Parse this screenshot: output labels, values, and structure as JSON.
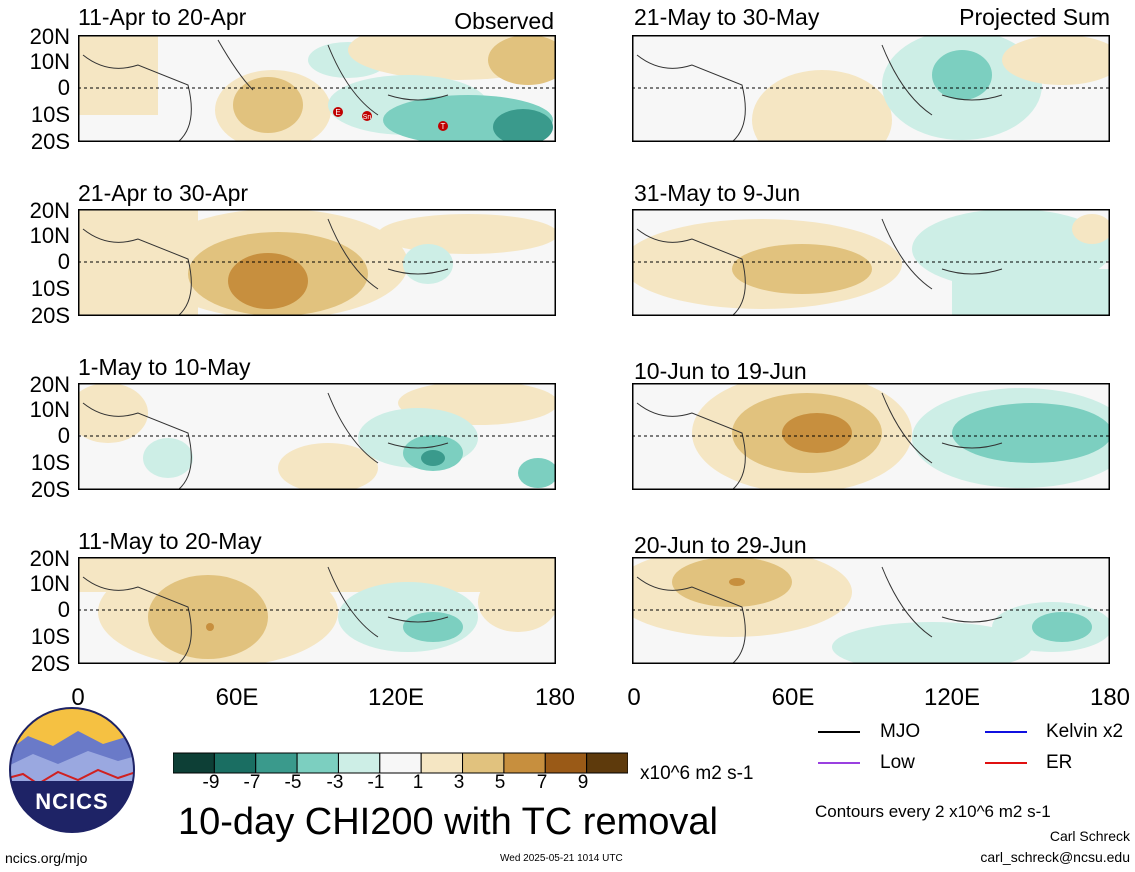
{
  "observed_label": "Observed",
  "projected_label": "Projected Sum",
  "lat_labels": [
    "20N",
    "10N",
    "0",
    "10S",
    "20S"
  ],
  "lon_labels": [
    "0",
    "60E",
    "120E",
    "180"
  ],
  "panels_left": [
    {
      "title": "11-Apr to 20-Apr"
    },
    {
      "title": "21-Apr to 30-Apr"
    },
    {
      "title": "1-May to 10-May"
    },
    {
      "title": "11-May to 20-May"
    }
  ],
  "panels_right": [
    {
      "title": "21-May to 30-May"
    },
    {
      "title": "31-May to 9-Jun"
    },
    {
      "title": "10-Jun to 19-Jun"
    },
    {
      "title": "20-Jun to 29-Jun"
    }
  ],
  "tc_markers": [
    "E",
    "Sn",
    "T"
  ],
  "colorbar": {
    "labels": [
      "-9",
      "-7",
      "-5",
      "-3",
      "-1",
      "1",
      "3",
      "5",
      "7",
      "9"
    ],
    "units": "x10^6 m2 s-1",
    "colors": [
      "#0d3f36",
      "#1a6e62",
      "#3a9a8c",
      "#7ccfc0",
      "#cdeee6",
      "#f7f7f7",
      "#f5e6c3",
      "#e1c27e",
      "#c78f3e",
      "#9a5a17",
      "#5e3a0c"
    ]
  },
  "main_title": "10-day CHI200 with TC removal",
  "logo_text": "NCICS",
  "legend": {
    "mjo": "MJO",
    "kelvin": "Kelvin x2",
    "low": "Low",
    "er": "ER",
    "colors": {
      "mjo": "#000000",
      "kelvin": "#1010e0",
      "low": "#9a40e0",
      "er": "#e01010"
    }
  },
  "contours_note": "Contours every 2 x10^6 m2 s-1",
  "author": "Carl Schreck",
  "email": "carl_schreck@ncsu.edu",
  "url": "ncics.org/mjo",
  "timestamp": "Wed 2025-05-21 1014 UTC"
}
